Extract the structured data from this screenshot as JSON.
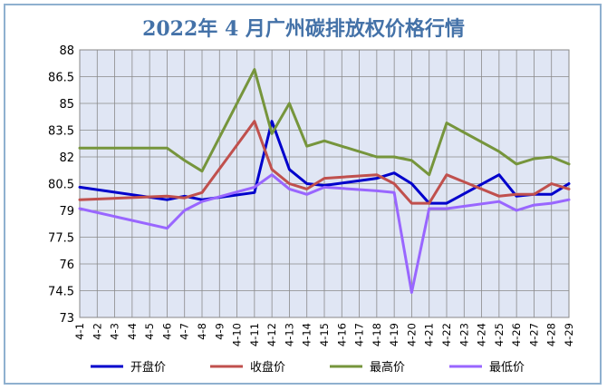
{
  "chart_data": {
    "type": "line",
    "title": "2022年 4 月广州碳排放权价格行情",
    "xlabel": "",
    "ylabel": "",
    "ylim": [
      73,
      88
    ],
    "yticks": [
      73,
      74.5,
      76,
      77.5,
      79,
      80.5,
      82,
      83.5,
      85,
      86.5,
      88
    ],
    "ytick_labels": [
      "73",
      "74.5",
      "76",
      "77.5",
      "79",
      "80.5",
      "82",
      "83.5",
      "85",
      "86.5",
      "88"
    ],
    "grid": true,
    "legend_position": "bottom",
    "categories": [
      "4-1",
      "4-2",
      "4-3",
      "4-4",
      "4-5",
      "4-6",
      "4-7",
      "4-8",
      "4-9",
      "4-10",
      "4-11",
      "4-12",
      "4-13",
      "4-14",
      "4-15",
      "4-16",
      "4-17",
      "4-18",
      "4-19",
      "4-20",
      "4-21",
      "4-22",
      "4-23",
      "4-24",
      "4-25",
      "4-26",
      "4-27",
      "4-28",
      "4-29"
    ],
    "x": [
      "4-1",
      "4-6",
      "4-7",
      "4-8",
      "4-11",
      "4-12",
      "4-13",
      "4-14",
      "4-15",
      "4-18",
      "4-19",
      "4-20",
      "4-21",
      "4-22",
      "4-25",
      "4-26",
      "4-27",
      "4-28",
      "4-29"
    ],
    "series": [
      {
        "name": "开盘价",
        "color": "#0000cc",
        "values": [
          80.3,
          79.6,
          79.8,
          79.6,
          80.0,
          84.0,
          81.3,
          80.5,
          80.4,
          80.8,
          81.1,
          80.5,
          79.4,
          79.4,
          81.0,
          79.8,
          79.9,
          79.9,
          80.5
        ]
      },
      {
        "name": "收盘价",
        "color": "#c0504d",
        "values": [
          79.6,
          79.8,
          79.7,
          80.0,
          84.0,
          81.3,
          80.5,
          80.2,
          80.8,
          81.0,
          80.5,
          79.4,
          79.4,
          81.0,
          79.8,
          79.9,
          79.9,
          80.5,
          80.2
        ]
      },
      {
        "name": "最高价",
        "color": "#76953c",
        "values": [
          82.5,
          82.5,
          81.8,
          81.2,
          86.9,
          83.3,
          85.0,
          82.6,
          82.9,
          82.0,
          82.0,
          81.8,
          81.0,
          83.9,
          82.3,
          81.6,
          81.9,
          82.0,
          81.6
        ]
      },
      {
        "name": "最低价",
        "color": "#9966ff",
        "values": [
          79.1,
          78.0,
          79.0,
          79.5,
          80.3,
          81.0,
          80.2,
          79.9,
          80.3,
          80.1,
          80.0,
          74.4,
          79.1,
          79.1,
          79.5,
          79.0,
          79.3,
          79.4,
          79.6
        ]
      }
    ]
  }
}
